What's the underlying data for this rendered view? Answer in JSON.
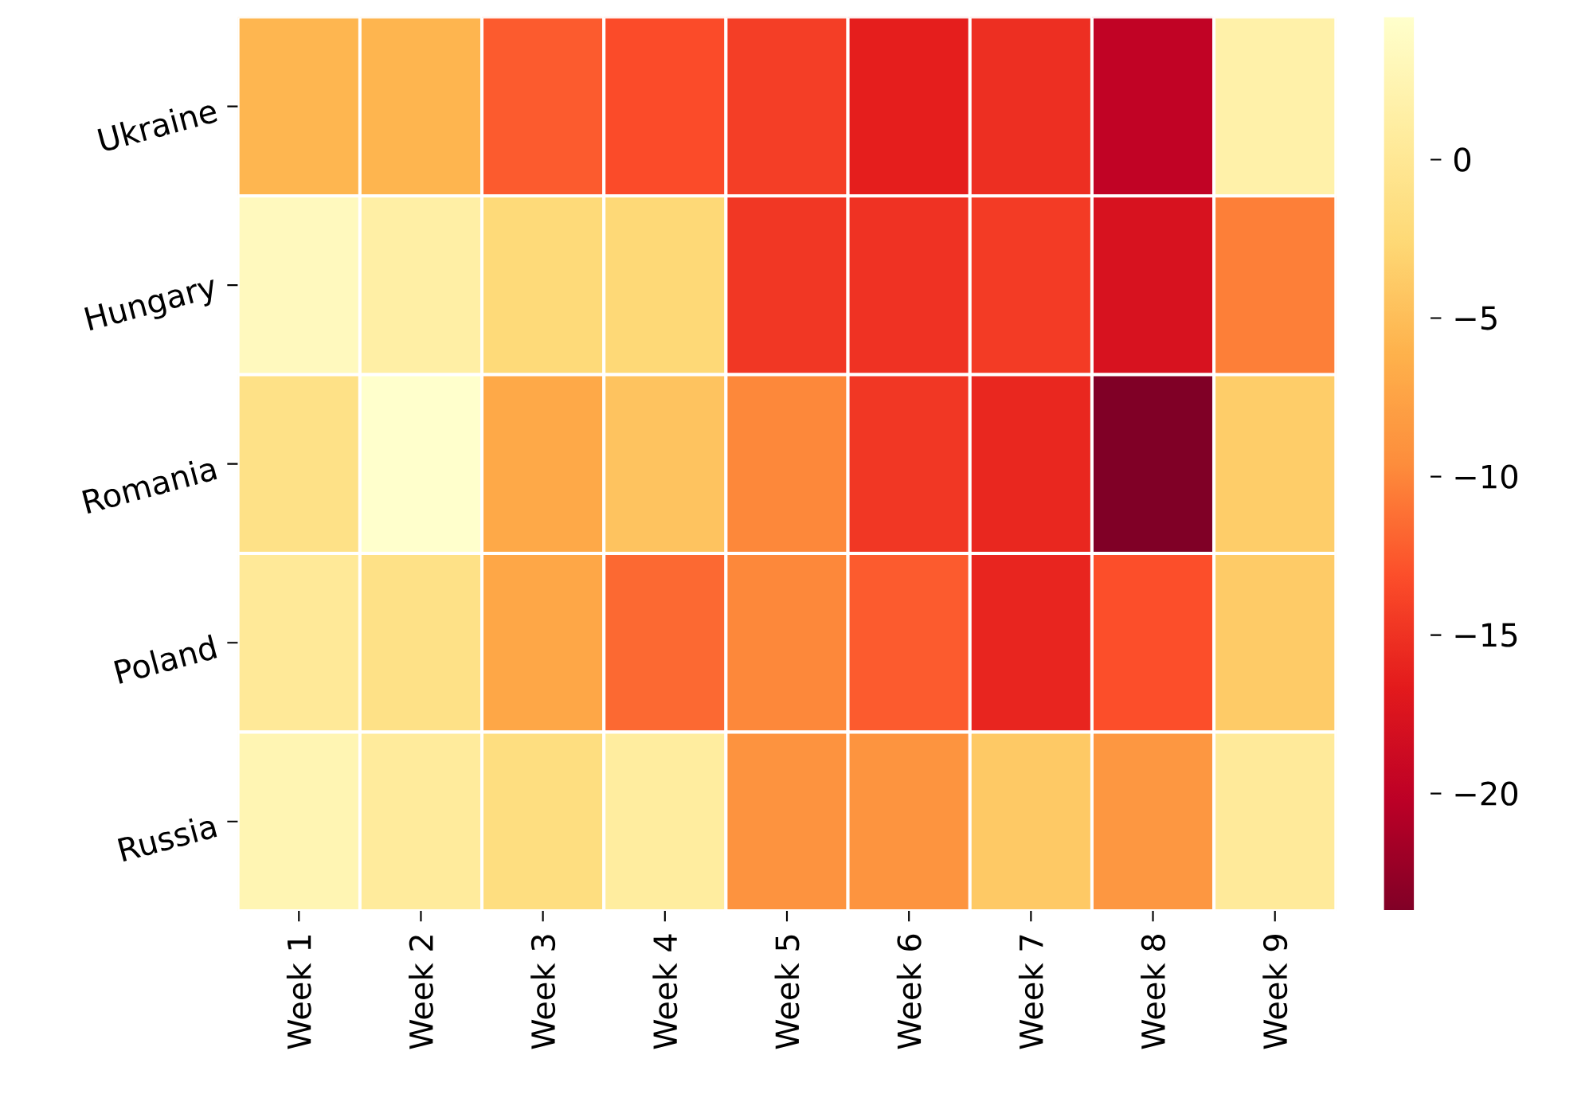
{
  "chart_data": {
    "type": "heatmap",
    "categories": [
      "Week 1",
      "Week 2",
      "Week 3",
      "Week 4",
      "Week 5",
      "Week 6",
      "Week 7",
      "Week 8",
      "Week 9"
    ],
    "y_categories": [
      "Ukraine",
      "Hungary",
      "Romania",
      "Poland",
      "Russia"
    ],
    "cells": [
      [
        -5.7,
        -5.8,
        -12.4,
        -13.3,
        -14.2,
        -16.4,
        -15.2,
        -19.8,
        1.7
      ],
      [
        3.4,
        1.4,
        -2.3,
        -2.5,
        -14.7,
        -15.0,
        -14.4,
        -17.8,
        -10.4
      ],
      [
        -1.1,
        4.5,
        -6.9,
        -4.5,
        -9.9,
        -14.7,
        -15.8,
        -23.7,
        -3.6
      ],
      [
        0.3,
        -1.1,
        -7.1,
        -11.6,
        -9.9,
        -12.4,
        -15.9,
        -13.1,
        -3.8
      ],
      [
        2.5,
        0.6,
        -1.7,
        0.9,
        -9.0,
        -8.9,
        -4.0,
        -8.6,
        0.5
      ]
    ],
    "clim": [
      -23.7,
      4.5
    ],
    "cticks": [
      0,
      {
        "value": -5,
        "label": "−5"
      },
      {
        "value": -10,
        "label": "−10"
      },
      {
        "value": -15,
        "label": "−15"
      },
      {
        "value": -20,
        "label": "−20"
      }
    ]
  }
}
